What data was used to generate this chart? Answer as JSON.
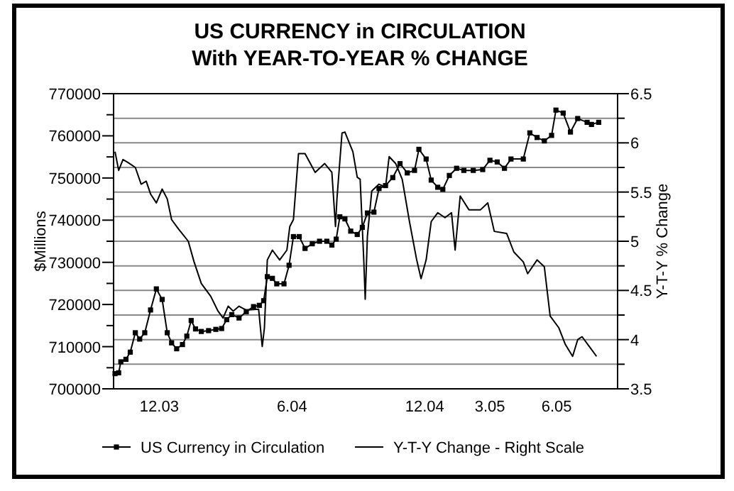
{
  "chart_data": {
    "type": "line",
    "title": "US CURRENCY in CIRCULATION",
    "subtitle": "With YEAR-TO-YEAR % CHANGE",
    "ylabel": "$Millions",
    "y2label": "Y-T-Y % Change",
    "xlim": [
      "2003-09-29",
      "2005-08-24"
    ],
    "xticks": [
      {
        "value": "2003-12-01",
        "label": "12.03"
      },
      {
        "value": "2004-06-01",
        "label": "6.04"
      },
      {
        "value": "2004-12-01",
        "label": "12.04"
      },
      {
        "value": "2005-03-01",
        "label": "3.05"
      },
      {
        "value": "2005-06-01",
        "label": "6.05"
      }
    ],
    "ylim": [
      700000,
      770000
    ],
    "yticks": [
      700000,
      {
        "value": 705000,
        "label": null
      },
      710000,
      {
        "value": 715000,
        "label": null
      },
      720000,
      {
        "value": 725000,
        "label": null
      },
      730000,
      {
        "value": 735000,
        "label": null
      },
      740000,
      {
        "value": 745000,
        "label": null
      },
      750000,
      {
        "value": 755000,
        "label": null
      },
      760000,
      {
        "value": 765000,
        "label": null
      },
      770000
    ],
    "y2lim": [
      3.5,
      6.5
    ],
    "y2ticks": [
      3.5,
      {
        "value": 3.75,
        "label": null
      },
      4,
      {
        "value": 4.25,
        "label": null
      },
      4.5,
      {
        "value": 4.75,
        "label": null
      },
      5,
      {
        "value": 5.25,
        "label": null
      },
      5.5,
      {
        "value": 5.75,
        "label": null
      },
      6,
      {
        "value": 6.25,
        "label": null
      },
      6.5
    ],
    "grid": "y2",
    "legend": "bottom",
    "line_style": "solid",
    "series": [
      {
        "name": "US Currency in Circulation",
        "color": "#000000",
        "marker": "square",
        "x": [
          "2003-10-01",
          "2003-10-06",
          "2003-10-09",
          "2003-10-16",
          "2003-10-22",
          "2003-10-29",
          "2003-11-04",
          "2003-11-11",
          "2003-11-19",
          "2003-11-27",
          "2003-12-05",
          "2003-12-12",
          "2003-12-18",
          "2003-12-25",
          "2004-01-02",
          "2004-01-08",
          "2004-01-14",
          "2004-01-20",
          "2004-01-28",
          "2004-02-07",
          "2004-02-17",
          "2004-02-25",
          "2004-03-03",
          "2004-03-10",
          "2004-03-20",
          "2004-03-30",
          "2004-04-09",
          "2004-04-17",
          "2004-04-23",
          "2004-04-28",
          "2004-05-05",
          "2004-05-11",
          "2004-05-21",
          "2004-05-28",
          "2004-06-03",
          "2004-06-11",
          "2004-06-19",
          "2004-06-29",
          "2004-07-09",
          "2004-07-19",
          "2004-07-26",
          "2004-08-01",
          "2004-08-06",
          "2004-08-13",
          "2004-08-21",
          "2004-08-30",
          "2004-09-06",
          "2004-09-13",
          "2004-09-22",
          "2004-09-29",
          "2004-10-08",
          "2004-10-18",
          "2004-10-28",
          "2004-11-07",
          "2004-11-17",
          "2004-11-23",
          "2004-12-03",
          "2004-12-10",
          "2004-12-19",
          "2004-12-26",
          "2005-01-04",
          "2005-01-14",
          "2005-01-24",
          "2005-02-06",
          "2005-02-19",
          "2005-03-01",
          "2005-03-11",
          "2005-03-21",
          "2005-03-30",
          "2005-04-16",
          "2005-04-25",
          "2005-05-05",
          "2005-05-15",
          "2005-05-25",
          "2005-05-31",
          "2005-06-10",
          "2005-06-20",
          "2005-06-30",
          "2005-07-13",
          "2005-07-19",
          "2005-07-29"
        ],
        "values": [
          703600,
          703800,
          706400,
          707000,
          708700,
          713300,
          711800,
          713300,
          718700,
          723700,
          721200,
          713300,
          710900,
          709500,
          710500,
          712500,
          716200,
          714200,
          713600,
          713800,
          714100,
          714300,
          716400,
          717600,
          716800,
          718300,
          719500,
          719800,
          720900,
          726600,
          726200,
          724900,
          724900,
          729300,
          736100,
          736100,
          733300,
          734400,
          735000,
          735000,
          734100,
          735500,
          740800,
          740300,
          737400,
          736600,
          738300,
          741700,
          741900,
          747500,
          748200,
          750100,
          753400,
          751200,
          751800,
          756800,
          754500,
          749500,
          747800,
          747300,
          750600,
          752300,
          751800,
          751800,
          752000,
          754200,
          753800,
          752300,
          754500,
          754500,
          760700,
          759600,
          758800,
          760100,
          766100,
          765400,
          760900,
          764100,
          763200,
          762700,
          763200
        ]
      },
      {
        "name": "Y-T-Y Change - Right Scale",
        "color": "#000000",
        "axis": "y2",
        "x": [
          "2003-10-01",
          "2003-10-06",
          "2003-10-12",
          "2003-10-19",
          "2003-10-29",
          "2003-11-06",
          "2003-11-13",
          "2003-11-19",
          "2003-11-27",
          "2003-12-05",
          "2003-12-12",
          "2003-12-18",
          "2003-12-28",
          "2004-01-10",
          "2004-01-18",
          "2004-01-28",
          "2004-02-10",
          "2004-02-20",
          "2004-02-27",
          "2004-03-05",
          "2004-03-12",
          "2004-03-20",
          "2004-03-30",
          "2004-04-16",
          "2004-04-21",
          "2004-04-24",
          "2004-04-28",
          "2004-05-05",
          "2004-05-15",
          "2004-05-25",
          "2004-05-29",
          "2004-06-03",
          "2004-06-10",
          "2004-06-19",
          "2004-07-03",
          "2004-07-16",
          "2004-07-26",
          "2004-07-31",
          "2004-08-02",
          "2004-08-09",
          "2004-08-13",
          "2004-08-24",
          "2004-08-30",
          "2004-09-03",
          "2004-09-08",
          "2004-09-10",
          "2004-09-13",
          "2004-09-19",
          "2004-09-29",
          "2004-10-08",
          "2004-10-13",
          "2004-10-22",
          "2004-10-31",
          "2004-11-10",
          "2004-11-20",
          "2004-11-26",
          "2004-12-03",
          "2004-12-10",
          "2004-12-19",
          "2004-12-29",
          "2005-01-07",
          "2005-01-12",
          "2005-01-19",
          "2005-01-31",
          "2005-02-16",
          "2005-02-26",
          "2005-03-07",
          "2005-03-24",
          "2005-04-03",
          "2005-04-16",
          "2005-04-22",
          "2005-05-05",
          "2005-05-15",
          "2005-05-23",
          "2005-06-04",
          "2005-06-13",
          "2005-06-23",
          "2005-06-30",
          "2005-07-06",
          "2005-07-16",
          "2005-07-26"
        ],
        "values": [
          5.91,
          5.72,
          5.83,
          5.8,
          5.75,
          5.58,
          5.61,
          5.48,
          5.39,
          5.53,
          5.43,
          5.22,
          5.12,
          5.0,
          4.79,
          4.57,
          4.44,
          4.29,
          4.22,
          4.34,
          4.29,
          4.34,
          4.3,
          4.31,
          3.93,
          4.12,
          4.81,
          4.91,
          4.81,
          4.91,
          5.15,
          5.22,
          5.89,
          5.89,
          5.7,
          5.79,
          5.7,
          5.15,
          5.43,
          6.1,
          6.11,
          5.91,
          5.65,
          5.63,
          4.81,
          4.41,
          5.05,
          5.51,
          5.58,
          5.55,
          5.86,
          5.79,
          5.63,
          5.2,
          4.81,
          4.62,
          4.81,
          5.2,
          5.29,
          5.24,
          5.29,
          4.91,
          5.46,
          5.32,
          5.32,
          5.39,
          5.1,
          5.08,
          4.89,
          4.79,
          4.67,
          4.81,
          4.74,
          4.24,
          4.12,
          3.95,
          3.83,
          4.0,
          4.03,
          3.93,
          3.83
        ]
      }
    ]
  }
}
